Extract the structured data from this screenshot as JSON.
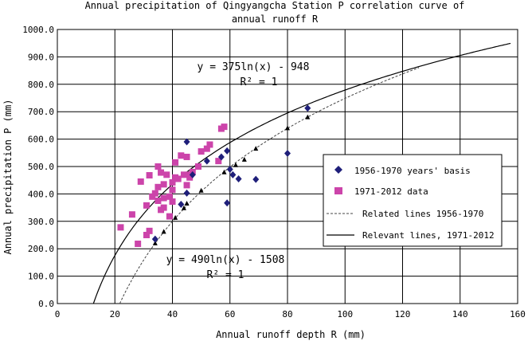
{
  "chart_data": {
    "type": "scatter",
    "title_line1": "Annual precipitation of Qingyangcha Station P correlation curve of",
    "title_line2": "annual runoff R",
    "xlabel": "Annual runoff depth R (mm)",
    "ylabel": "Annual precipitation P (mm)",
    "xlim": [
      0,
      160
    ],
    "ylim": [
      0,
      1000
    ],
    "x_ticks": [
      0,
      20,
      40,
      60,
      80,
      100,
      120,
      140,
      160
    ],
    "y_ticks": [
      0,
      100,
      200,
      300,
      400,
      500,
      600,
      700,
      800,
      900,
      1000
    ],
    "y_tick_labels": [
      "0.0",
      "100.0",
      "200.0",
      "300.0",
      "400.0",
      "500.0",
      "600.0",
      "700.0",
      "800.0",
      "900.0",
      "1000.0"
    ],
    "grid": true,
    "legend_position": "right",
    "series": [
      {
        "name": "1956-1970 years' basis",
        "marker": "diamond",
        "color": "#1f1f7a",
        "points": [
          [
            34,
            235
          ],
          [
            43,
            362
          ],
          [
            45,
            403
          ],
          [
            45,
            590
          ],
          [
            47,
            470
          ],
          [
            52,
            520
          ],
          [
            57,
            535
          ],
          [
            59,
            557
          ],
          [
            59,
            367
          ],
          [
            60,
            490
          ],
          [
            61,
            470
          ],
          [
            63,
            455
          ],
          [
            69,
            453
          ],
          [
            80,
            548
          ],
          [
            87,
            713
          ]
        ]
      },
      {
        "name": "1971-2012 data",
        "marker": "square",
        "color": "#cc44aa",
        "points": [
          [
            22,
            278
          ],
          [
            26,
            325
          ],
          [
            28,
            218
          ],
          [
            29,
            445
          ],
          [
            31,
            250
          ],
          [
            31,
            358
          ],
          [
            32,
            265
          ],
          [
            32,
            468
          ],
          [
            33,
            390
          ],
          [
            34,
            402
          ],
          [
            35,
            375
          ],
          [
            35,
            500
          ],
          [
            35,
            425
          ],
          [
            36,
            478
          ],
          [
            36,
            342
          ],
          [
            37,
            350
          ],
          [
            37,
            435
          ],
          [
            37,
            385
          ],
          [
            38,
            470
          ],
          [
            39,
            318
          ],
          [
            39,
            390
          ],
          [
            40,
            415
          ],
          [
            40,
            442
          ],
          [
            40,
            372
          ],
          [
            41,
            515
          ],
          [
            41,
            460
          ],
          [
            42,
            455
          ],
          [
            43,
            540
          ],
          [
            44,
            470
          ],
          [
            45,
            535
          ],
          [
            45,
            432
          ],
          [
            46,
            460
          ],
          [
            46,
            470
          ],
          [
            47,
            480
          ],
          [
            49,
            500
          ],
          [
            50,
            555
          ],
          [
            52,
            565
          ],
          [
            53,
            580
          ],
          [
            56,
            520
          ],
          [
            57,
            638
          ],
          [
            58,
            645
          ]
        ]
      },
      {
        "name": "Related lines 1956-1970",
        "marker": "triangle",
        "line_style": "dashed",
        "color": "#000000",
        "equation": "y = 490ln(x) - 1508",
        "r2": "R² = 1",
        "points": [
          [
            34,
            220
          ],
          [
            37,
            262
          ],
          [
            41,
            313
          ],
          [
            44,
            348
          ],
          [
            45,
            365
          ],
          [
            50,
            412
          ],
          [
            58,
            479
          ],
          [
            62,
            505
          ],
          [
            65,
            525
          ],
          [
            69,
            565
          ],
          [
            80,
            640
          ],
          [
            87,
            680
          ]
        ]
      },
      {
        "name": "Relevant lines, 1971-2012",
        "line_style": "solid",
        "color": "#000000",
        "equation": "y = 375ln(x) - 948",
        "r2": "R² = 1"
      }
    ]
  }
}
